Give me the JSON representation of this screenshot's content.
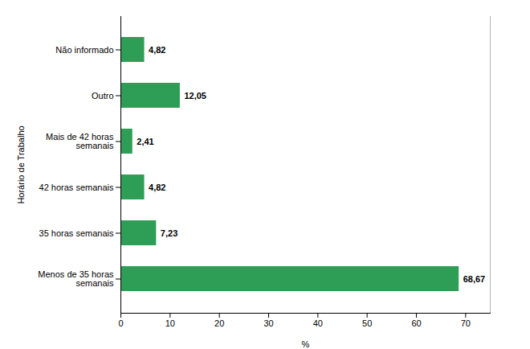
{
  "chart_data": {
    "type": "bar",
    "orientation": "horizontal",
    "categories": [
      "Menos de 35 horas\nsemanais",
      "35 horas semanais",
      "42 horas semanais",
      "Mais de 42 horas\nsemanais",
      "Outro",
      "Não informado"
    ],
    "values": [
      68.67,
      7.23,
      4.82,
      2.41,
      12.05,
      4.82
    ],
    "value_labels": [
      "68,67",
      "7,23",
      "4,82",
      "2,41",
      "12,05",
      "4,82"
    ],
    "data_labels": true,
    "color": "#2e9e57",
    "xlabel": "%",
    "ylabel": "Horário de Trabalho",
    "xlim": [
      0,
      75
    ],
    "xticks": [
      0,
      10,
      20,
      30,
      40,
      50,
      60,
      70
    ],
    "grid": false
  }
}
